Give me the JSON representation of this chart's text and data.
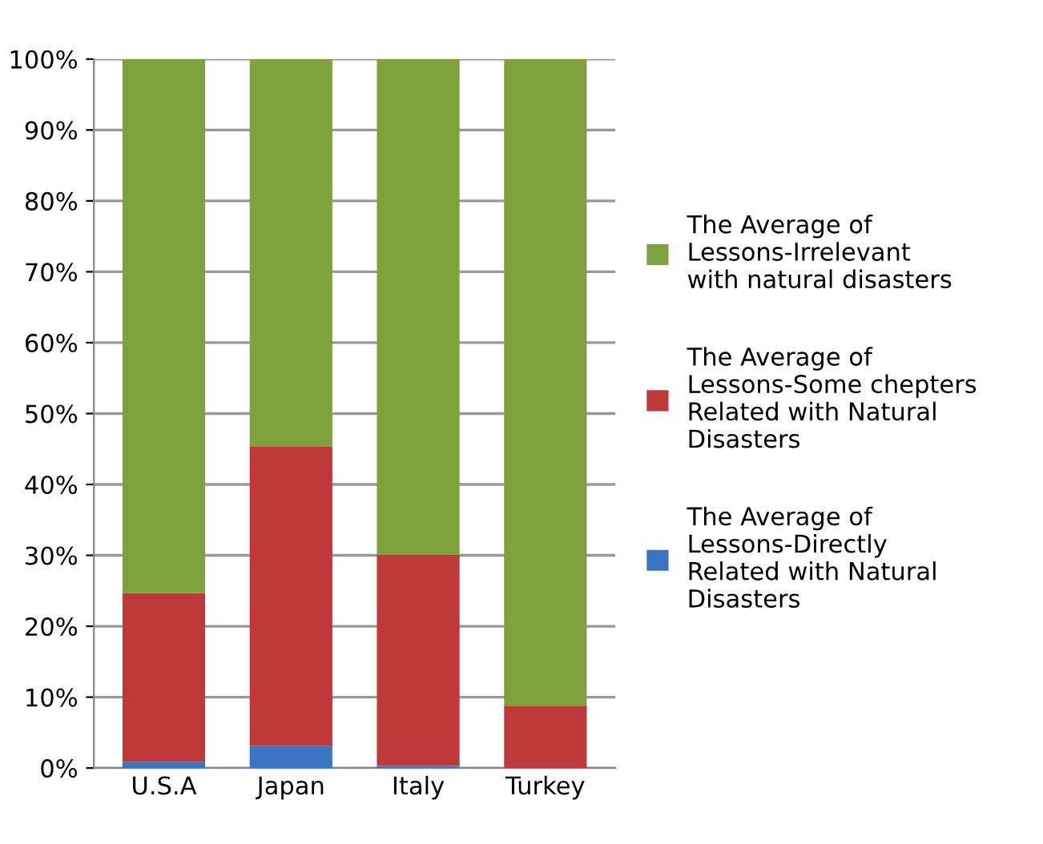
{
  "chart_data": {
    "type": "bar",
    "stacked": true,
    "categories": [
      "U.S.A",
      "Japan",
      "Italy",
      "Turkey"
    ],
    "series": [
      {
        "name": "The Average of Lessons-Directly Related with Natural Disasters",
        "color": "#3a75c4",
        "values": [
          0.9,
          3.1,
          0.3,
          0
        ]
      },
      {
        "name": "The Average of Lessons-Some chepters Related with Natural Disasters",
        "color": "#c0393a",
        "values": [
          23.8,
          42.2,
          29.8,
          8.8
        ]
      },
      {
        "name": "The Average of Lessons-Irrelevant with natural disasters",
        "color": "#7fa23c",
        "values": [
          75.3,
          54.7,
          69.9,
          91.2
        ]
      }
    ],
    "ylim": [
      0,
      100
    ],
    "yticks": [
      {
        "value": 0,
        "label": "0%"
      },
      {
        "value": 10,
        "label": "10%"
      },
      {
        "value": 20,
        "label": "20%"
      },
      {
        "value": 30,
        "label": "30%"
      },
      {
        "value": 40,
        "label": "40%"
      },
      {
        "value": 50,
        "label": "50%"
      },
      {
        "value": 60,
        "label": "60%"
      },
      {
        "value": 70,
        "label": "70%"
      },
      {
        "value": 80,
        "label": "80%"
      },
      {
        "value": 90,
        "label": "90%"
      },
      {
        "value": 100,
        "label": "100%"
      }
    ],
    "grid": "y",
    "legend": "right"
  }
}
